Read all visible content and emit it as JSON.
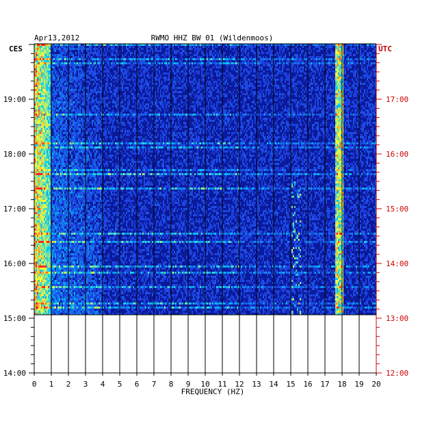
{
  "chart_data": {
    "type": "heatmap",
    "date": "Apr13,2012",
    "title": "RWMO HHZ BW 01 (Wildenmoos)",
    "left_zone_label": "CES",
    "right_zone_label": "UTC",
    "xlabel": "FREQUENCY (HZ)",
    "x_ticks": [
      "0",
      "1",
      "2",
      "3",
      "4",
      "5",
      "6",
      "7",
      "8",
      "9",
      "10",
      "11",
      "12",
      "13",
      "14",
      "15",
      "16",
      "17",
      "18",
      "19",
      "20"
    ],
    "xlim": [
      0,
      20
    ],
    "left_time_ticks": [
      "19:00",
      "18:00",
      "17:00",
      "16:00",
      "15:00",
      "14:00"
    ],
    "right_time_ticks": [
      "17:00",
      "16:00",
      "15:00",
      "14:00",
      "13:00",
      "12:00"
    ],
    "time_range_ces": [
      "14:00",
      "19:15"
    ],
    "data_end_ces": "15:00",
    "colormap": [
      "#0a1a9a",
      "#1f3fe0",
      "#00c8ff",
      "#ffff30",
      "#ff2020"
    ],
    "features": [
      {
        "note": "persistent high energy",
        "freq_range_hz": [
          0,
          0.9
        ]
      },
      {
        "note": "persistent spectral line",
        "freq_hz": 17.8
      },
      {
        "note": "intermittent line",
        "freq_hz": 15.3
      }
    ],
    "left_axis_color": "#000000",
    "right_axis_color": "#cc0000"
  }
}
